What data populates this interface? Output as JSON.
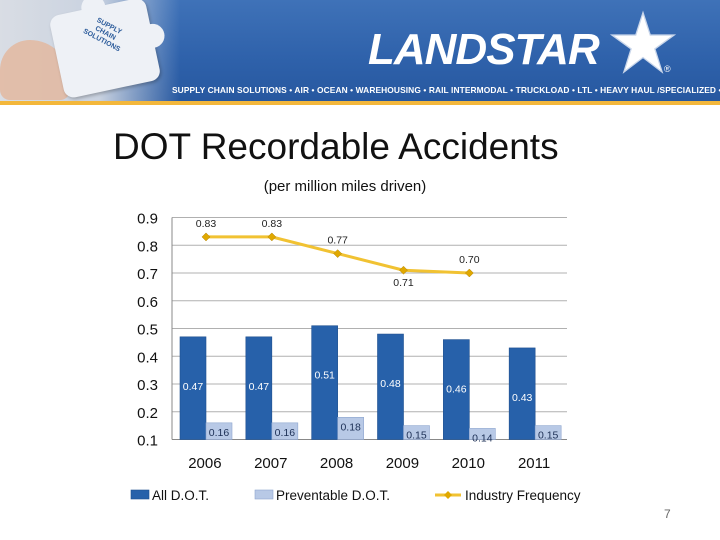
{
  "header": {
    "puzzle_text": "SUPPLY\nCHAIN\nSOLUTIONS",
    "logo_text": "LANDSTAR",
    "registered_mark": "®",
    "services": "SUPPLY CHAIN SOLUTIONS • AIR • OCEAN • WAREHOUSING • RAIL INTERMODAL • TRUCKLOAD • LTL • HEAVY HAUL /SPECIALIZED • EXPEDITED",
    "colors": {
      "banner": "#2f62ab",
      "stripe": "#f3b73b"
    }
  },
  "slide": {
    "title": "DOT Recordable Accidents",
    "subtitle": "(per million miles driven)",
    "page_number": "7"
  },
  "chart_data": {
    "type": "bar",
    "categories": [
      "2006",
      "2007",
      "2008",
      "2009",
      "2010",
      "2011"
    ],
    "ylim": [
      0.1,
      0.9
    ],
    "yticks": [
      "0.1",
      "0.2",
      "0.3",
      "0.4",
      "0.5",
      "0.6",
      "0.7",
      "0.8",
      "0.9"
    ],
    "grid": true,
    "legend_position": "bottom",
    "series": [
      {
        "name": "All D.O.T.",
        "kind": "bar",
        "color": "#2761aa",
        "values": [
          0.47,
          0.47,
          0.51,
          0.48,
          0.46,
          0.43
        ],
        "labels": [
          "0.47",
          "0.47",
          "0.51",
          "0.48",
          "0.46",
          "0.43"
        ]
      },
      {
        "name": "Preventable D.O.T.",
        "kind": "bar",
        "color": "#b8c9e6",
        "values": [
          0.16,
          0.16,
          0.18,
          0.15,
          0.14,
          0.15
        ],
        "labels": [
          "0.16",
          "0.16",
          "0.18",
          "0.15",
          "0.14",
          "0.15"
        ]
      },
      {
        "name": "Industry Frequency",
        "kind": "line",
        "color": "#f1c232",
        "values": [
          0.83,
          0.83,
          0.77,
          0.71,
          0.7,
          null
        ],
        "labels": [
          "0.83",
          "0.83",
          "0.77",
          "0.71",
          "0.70",
          ""
        ]
      }
    ]
  }
}
